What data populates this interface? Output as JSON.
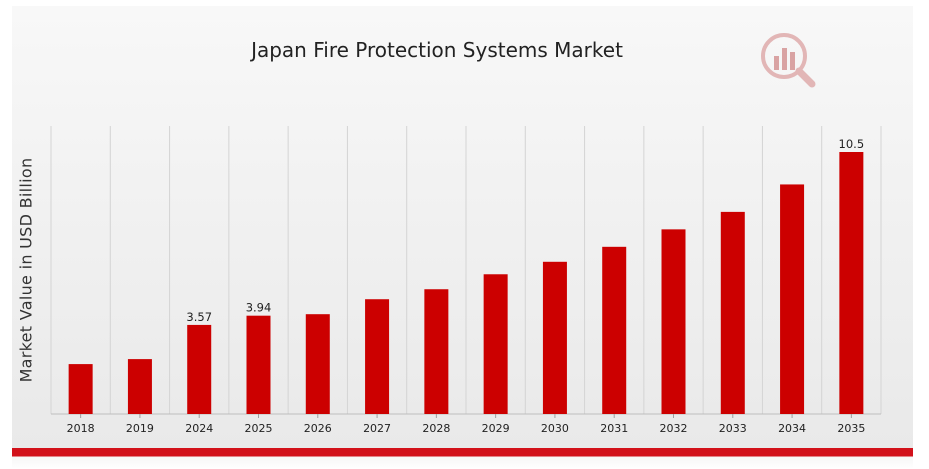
{
  "chart_data": {
    "type": "bar",
    "title": "Japan Fire Protection Systems Market",
    "ylabel": "Market Value in USD Billion",
    "xlabel": "",
    "categories": [
      "2018",
      "2019",
      "2024",
      "2025",
      "2026",
      "2027",
      "2028",
      "2029",
      "2030",
      "2031",
      "2032",
      "2033",
      "2034",
      "2035"
    ],
    "values": [
      2.0,
      2.2,
      3.57,
      3.94,
      4.0,
      4.6,
      5.0,
      5.6,
      6.1,
      6.7,
      7.4,
      8.1,
      9.2,
      10.5
    ],
    "data_labels": [
      "",
      "",
      "3.57",
      "3.94",
      "",
      "",
      "",
      "",
      "",
      "",
      "",
      "",
      "",
      "10.5"
    ],
    "ylim": [
      0,
      10.5
    ],
    "grid": "vertical",
    "bar_color": "#cc0000",
    "accent_color": "#d2111a"
  },
  "logo": {
    "icon": "chart-magnifier-logo-icon"
  }
}
